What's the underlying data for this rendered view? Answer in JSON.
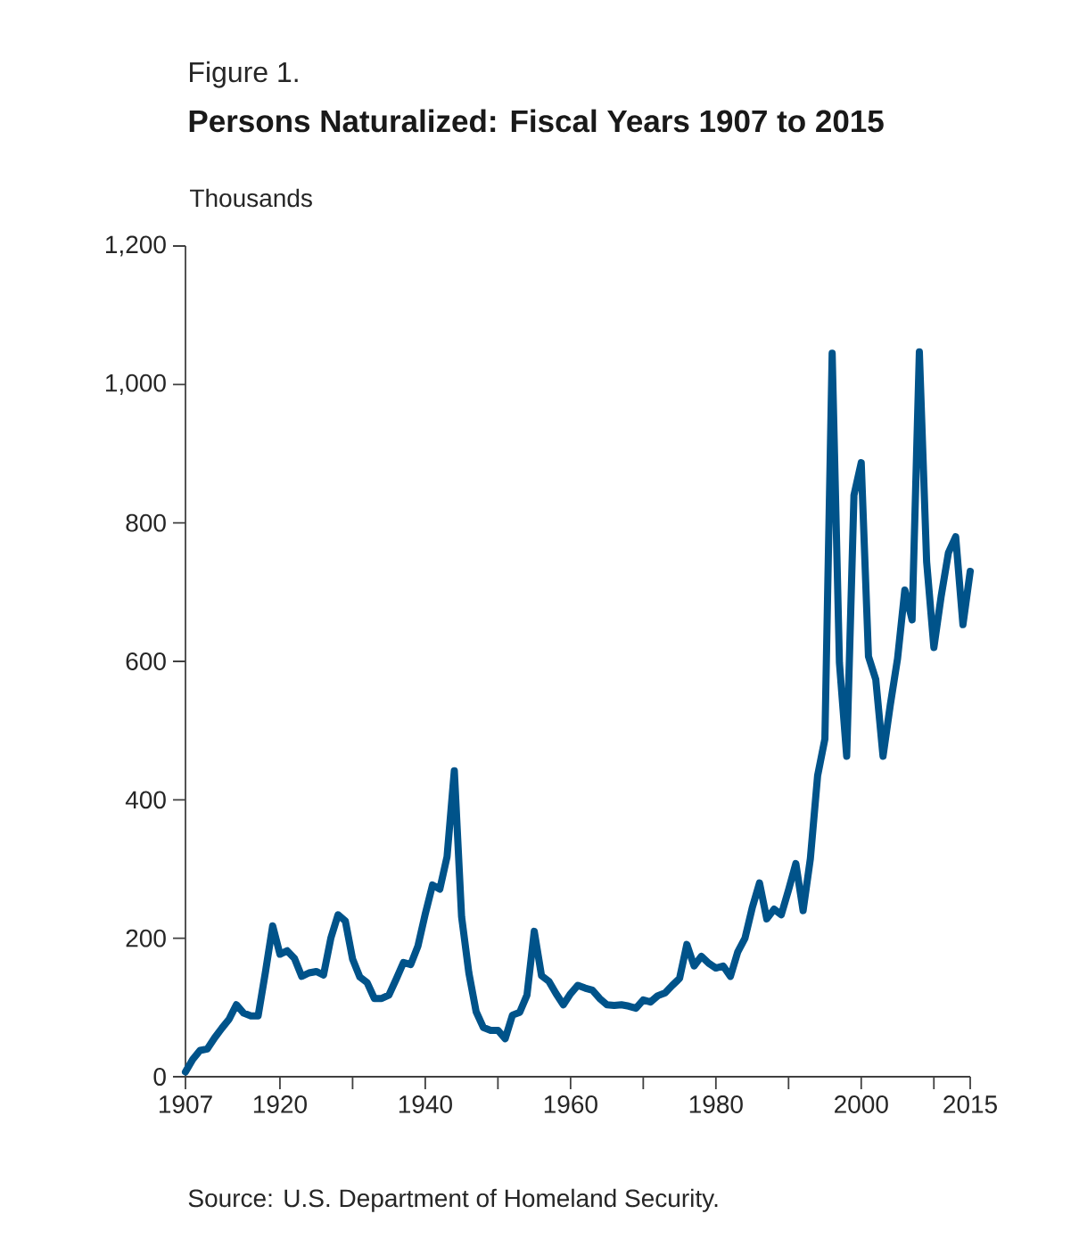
{
  "chart_data": {
    "type": "line",
    "title": "Persons Naturalized: Fiscal Years 1907 to 2015",
    "ylabel": "Thousands",
    "annotations": [
      "Figure 1.",
      "Source: U.S. Department of Homeland Security."
    ],
    "x": [
      1907,
      1908,
      1909,
      1910,
      1911,
      1912,
      1913,
      1914,
      1915,
      1916,
      1917,
      1918,
      1919,
      1920,
      1921,
      1922,
      1923,
      1924,
      1925,
      1926,
      1927,
      1928,
      1929,
      1930,
      1931,
      1932,
      1933,
      1934,
      1935,
      1936,
      1937,
      1938,
      1939,
      1940,
      1941,
      1942,
      1943,
      1944,
      1945,
      1946,
      1947,
      1948,
      1949,
      1950,
      1951,
      1952,
      1953,
      1954,
      1955,
      1956,
      1957,
      1958,
      1959,
      1960,
      1961,
      1962,
      1963,
      1964,
      1965,
      1966,
      1967,
      1968,
      1969,
      1970,
      1971,
      1972,
      1973,
      1974,
      1975,
      1976,
      1977,
      1978,
      1979,
      1980,
      1981,
      1982,
      1983,
      1984,
      1985,
      1986,
      1987,
      1988,
      1989,
      1990,
      1991,
      1992,
      1993,
      1994,
      1995,
      1996,
      1997,
      1998,
      1999,
      2000,
      2001,
      2002,
      2003,
      2004,
      2005,
      2006,
      2007,
      2008,
      2009,
      2010,
      2011,
      2012,
      2013,
      2014,
      2015
    ],
    "series": [
      {
        "color": "#00538a",
        "values": [
          7,
          25,
          38,
          40,
          56,
          70,
          83,
          104,
          92,
          88,
          88,
          151,
          218,
          177,
          182,
          171,
          145,
          150,
          152,
          147,
          200,
          234,
          225,
          170,
          144,
          136,
          113,
          113,
          118,
          141,
          165,
          162,
          189,
          235,
          277,
          271,
          318,
          442,
          231,
          150,
          94,
          71,
          67,
          67,
          55,
          89,
          93,
          118,
          210,
          146,
          138,
          120,
          104,
          120,
          132,
          128,
          125,
          113,
          104,
          103,
          104,
          102,
          99,
          111,
          108,
          117,
          121,
          132,
          142,
          191,
          160,
          174,
          164,
          157,
          160,
          145,
          180,
          200,
          244,
          280,
          228,
          242,
          234,
          270,
          308,
          240,
          315,
          435,
          488,
          1045,
          598,
          463,
          840,
          887,
          607,
          574,
          463,
          537,
          604,
          703,
          660,
          1047,
          744,
          620,
          694,
          757,
          780,
          653,
          730
        ]
      }
    ],
    "xlim": [
      1907,
      2015
    ],
    "ylim": [
      0,
      1200
    ],
    "xticks": [
      1907,
      1920,
      {
        "value": 1930,
        "label": null
      },
      1940,
      {
        "value": 1950,
        "label": null
      },
      1960,
      {
        "value": 1970,
        "label": null
      },
      1980,
      {
        "value": 1990,
        "label": null
      },
      2000,
      {
        "value": 2010,
        "label": null
      },
      2015
    ],
    "yticks": [
      0,
      200,
      400,
      600,
      800,
      {
        "value": 1000,
        "label": "1,000"
      },
      {
        "value": 1200,
        "label": "1,200"
      }
    ],
    "grid": false,
    "marker": "none",
    "line_style": "solid"
  }
}
